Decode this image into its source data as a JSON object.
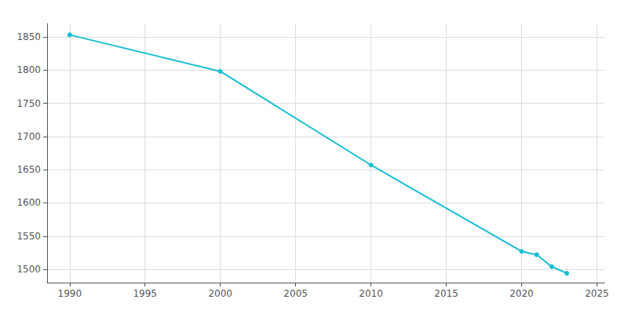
{
  "chart_data": {
    "type": "line",
    "x": [
      1990,
      2000,
      2010,
      2020,
      2021,
      2022,
      2023
    ],
    "values": [
      1853,
      1798,
      1657,
      1527,
      1522,
      1504,
      1494
    ],
    "color": "#17becf",
    "marker": "circle",
    "xlim": [
      1988.5,
      2025.5
    ],
    "xticks": [
      1990,
      1995,
      2000,
      2005,
      2010,
      2015,
      2020,
      2025
    ],
    "ylim": [
      1480,
      1870
    ],
    "yticks": [
      1500,
      1550,
      1600,
      1650,
      1700,
      1750,
      1800,
      1850
    ],
    "grid": true
  }
}
